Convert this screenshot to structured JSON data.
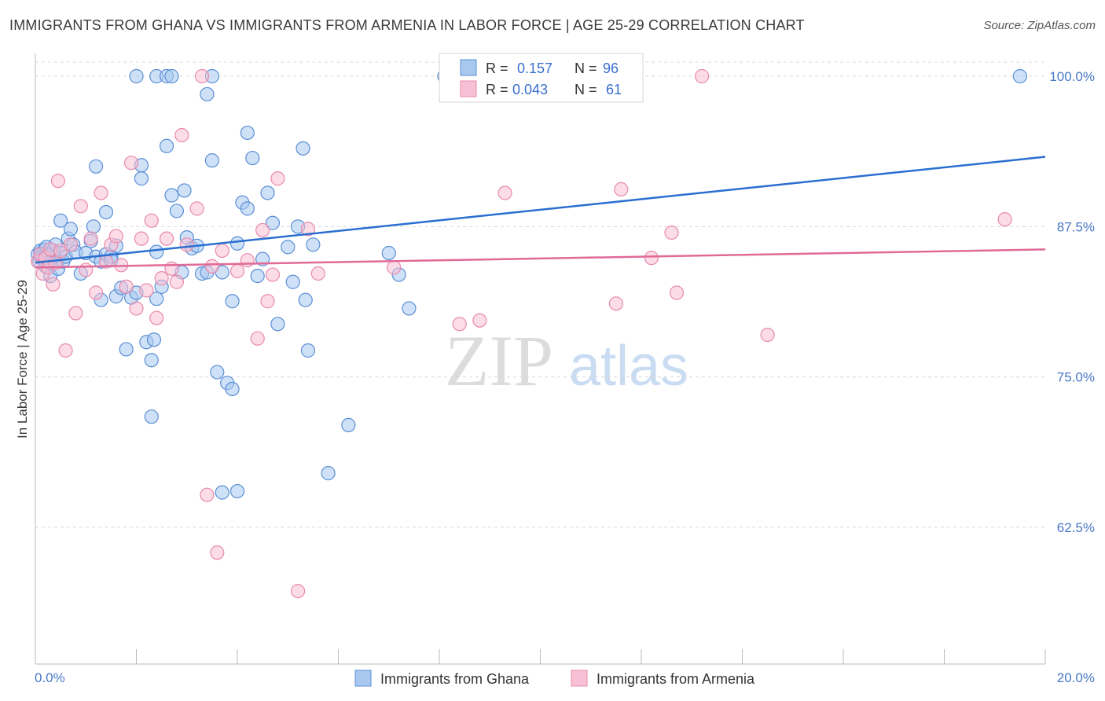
{
  "title": "IMMIGRANTS FROM GHANA VS IMMIGRANTS FROM ARMENIA IN LABOR FORCE | AGE 25-29 CORRELATION CHART",
  "source": "Source: ZipAtlas.com",
  "watermark": {
    "zip": "ZIP",
    "atlas": "atlas"
  },
  "legend_top": {
    "ghana": {
      "r_label": "R =",
      "r_value": "0.157",
      "n_label": "N =",
      "n_value": "96"
    },
    "armenia": {
      "r_label": "R =",
      "r_value": "0.043",
      "n_label": "N =",
      "n_value": "61"
    }
  },
  "colors": {
    "ghana_fill": "#a8c8f0",
    "ghana_stroke": "#5a8fd6",
    "ghana_line": "#2a6fd0",
    "armenia_fill": "#f8c0d4",
    "armenia_stroke": "#e88aac",
    "armenia_line": "#e06a98",
    "value_text": "#3a6fd0",
    "grid": "#d8d8d8"
  },
  "chart_data": {
    "type": "scatter",
    "title": "IMMIGRANTS FROM GHANA VS IMMIGRANTS FROM ARMENIA IN LABOR FORCE | AGE 25-29 CORRELATION CHART",
    "xlabel": "",
    "ylabel": "In Labor Force | Age 25-29",
    "xlim": [
      0,
      20
    ],
    "ylim": [
      51.5,
      101.5
    ],
    "x_tick_labels": [
      "0.0%",
      "20.0%"
    ],
    "y_ticks": [
      62.5,
      75.0,
      87.5,
      100.0
    ],
    "y_tick_labels": [
      "62.5%",
      "75.0%",
      "87.5%",
      "100.0%"
    ],
    "grid": true,
    "legend": "top-center and bottom",
    "series": [
      {
        "name": "Immigrants from Ghana",
        "R": 0.157,
        "N": 96,
        "trend": [
          [
            0,
            84.5
          ],
          [
            20,
            93.3
          ]
        ],
        "points": [
          [
            0.05,
            85.2
          ],
          [
            0.08,
            84.6
          ],
          [
            0.1,
            85.5
          ],
          [
            0.12,
            85.0
          ],
          [
            0.15,
            84.8
          ],
          [
            0.18,
            85.6
          ],
          [
            0.2,
            84.2
          ],
          [
            0.22,
            85.8
          ],
          [
            0.25,
            85.1
          ],
          [
            0.28,
            84.5
          ],
          [
            0.3,
            83.4
          ],
          [
            0.35,
            85.5
          ],
          [
            0.4,
            86.0
          ],
          [
            0.45,
            84.0
          ],
          [
            0.5,
            85.3
          ],
          [
            0.55,
            84.6
          ],
          [
            0.6,
            85.0
          ],
          [
            0.65,
            86.5
          ],
          [
            0.7,
            87.3
          ],
          [
            0.75,
            86.0
          ],
          [
            0.8,
            85.4
          ],
          [
            0.9,
            83.6
          ],
          [
            1.0,
            85.3
          ],
          [
            1.1,
            86.3
          ],
          [
            1.2,
            85.0
          ],
          [
            1.3,
            84.6
          ],
          [
            1.4,
            85.2
          ],
          [
            1.5,
            85.0
          ],
          [
            1.6,
            85.9
          ],
          [
            0.5,
            88.0
          ],
          [
            1.15,
            87.5
          ],
          [
            1.2,
            92.5
          ],
          [
            1.4,
            88.7
          ],
          [
            1.3,
            81.4
          ],
          [
            1.5,
            84.7
          ],
          [
            1.6,
            81.7
          ],
          [
            1.7,
            82.4
          ],
          [
            1.8,
            77.3
          ],
          [
            1.9,
            81.6
          ],
          [
            2.0,
            82.0
          ],
          [
            2.1,
            92.6
          ],
          [
            2.1,
            91.5
          ],
          [
            2.2,
            77.9
          ],
          [
            2.3,
            76.4
          ],
          [
            2.35,
            78.1
          ],
          [
            2.3,
            71.7
          ],
          [
            2.4,
            85.4
          ],
          [
            2.4,
            81.5
          ],
          [
            2.5,
            82.5
          ],
          [
            2.6,
            94.2
          ],
          [
            2.7,
            90.1
          ],
          [
            2.8,
            88.8
          ],
          [
            2.9,
            83.7
          ],
          [
            2.95,
            90.5
          ],
          [
            3.0,
            86.6
          ],
          [
            3.1,
            85.7
          ],
          [
            3.2,
            85.9
          ],
          [
            3.3,
            83.6
          ],
          [
            3.4,
            83.7
          ],
          [
            3.5,
            93.0
          ],
          [
            3.6,
            75.4
          ],
          [
            3.7,
            83.7
          ],
          [
            3.8,
            74.5
          ],
          [
            3.9,
            81.3
          ],
          [
            4.0,
            86.1
          ],
          [
            4.1,
            89.5
          ],
          [
            4.2,
            95.3
          ],
          [
            4.3,
            93.2
          ],
          [
            4.2,
            89.0
          ],
          [
            4.4,
            83.4
          ],
          [
            4.5,
            84.8
          ],
          [
            4.6,
            90.3
          ],
          [
            4.7,
            87.8
          ],
          [
            4.8,
            79.4
          ],
          [
            5.0,
            85.8
          ],
          [
            5.1,
            82.9
          ],
          [
            5.2,
            87.5
          ],
          [
            5.3,
            94.0
          ],
          [
            5.35,
            81.4
          ],
          [
            5.4,
            77.2
          ],
          [
            5.5,
            86.0
          ],
          [
            3.9,
            74.0
          ],
          [
            3.7,
            65.4
          ],
          [
            4.0,
            65.5
          ],
          [
            5.8,
            67.0
          ],
          [
            6.2,
            71.0
          ],
          [
            7.0,
            85.3
          ],
          [
            7.2,
            83.5
          ],
          [
            7.4,
            80.7
          ],
          [
            2.0,
            100.0
          ],
          [
            2.4,
            100.0
          ],
          [
            2.6,
            100.0
          ],
          [
            2.7,
            100.0
          ],
          [
            3.4,
            98.5
          ],
          [
            3.5,
            100.0
          ],
          [
            8.1,
            100.0
          ],
          [
            19.5,
            100.0
          ]
        ]
      },
      {
        "name": "Immigrants from Armenia",
        "R": 0.043,
        "N": 61,
        "trend": [
          [
            0,
            84.1
          ],
          [
            20,
            85.6
          ]
        ],
        "points": [
          [
            0.05,
            84.6
          ],
          [
            0.1,
            85.2
          ],
          [
            0.15,
            83.6
          ],
          [
            0.2,
            84.9
          ],
          [
            0.25,
            84.1
          ],
          [
            0.3,
            85.6
          ],
          [
            0.35,
            82.7
          ],
          [
            0.4,
            84.5
          ],
          [
            0.45,
            91.3
          ],
          [
            0.5,
            85.5
          ],
          [
            0.6,
            77.2
          ],
          [
            0.7,
            86.0
          ],
          [
            0.8,
            80.3
          ],
          [
            0.9,
            89.2
          ],
          [
            1.0,
            83.9
          ],
          [
            1.1,
            86.5
          ],
          [
            1.2,
            82.0
          ],
          [
            1.3,
            90.3
          ],
          [
            1.4,
            84.6
          ],
          [
            1.5,
            86.0
          ],
          [
            1.6,
            86.7
          ],
          [
            1.7,
            84.3
          ],
          [
            1.8,
            82.5
          ],
          [
            1.9,
            92.8
          ],
          [
            2.0,
            80.7
          ],
          [
            2.1,
            86.5
          ],
          [
            2.2,
            82.2
          ],
          [
            2.3,
            88.0
          ],
          [
            2.4,
            79.9
          ],
          [
            2.5,
            83.2
          ],
          [
            2.6,
            86.5
          ],
          [
            2.7,
            84.0
          ],
          [
            2.8,
            82.9
          ],
          [
            2.9,
            95.1
          ],
          [
            3.0,
            86.0
          ],
          [
            3.2,
            89.0
          ],
          [
            3.4,
            65.2
          ],
          [
            3.5,
            84.2
          ],
          [
            3.6,
            60.4
          ],
          [
            3.7,
            85.5
          ],
          [
            4.0,
            83.8
          ],
          [
            4.2,
            84.7
          ],
          [
            4.4,
            78.2
          ],
          [
            4.5,
            87.2
          ],
          [
            4.6,
            81.3
          ],
          [
            4.7,
            83.5
          ],
          [
            4.8,
            91.5
          ],
          [
            5.2,
            57.2
          ],
          [
            5.4,
            87.3
          ],
          [
            5.6,
            83.6
          ],
          [
            7.1,
            84.1
          ],
          [
            8.4,
            79.4
          ],
          [
            8.8,
            79.7
          ],
          [
            9.3,
            90.3
          ],
          [
            11.5,
            81.1
          ],
          [
            11.6,
            90.6
          ],
          [
            12.2,
            84.9
          ],
          [
            12.6,
            87.0
          ],
          [
            12.7,
            82.0
          ],
          [
            14.5,
            78.5
          ],
          [
            19.2,
            88.1
          ],
          [
            3.3,
            100.0
          ],
          [
            13.2,
            100.0
          ]
        ]
      }
    ]
  },
  "legend_bottom": [
    {
      "label": "Immigrants from Ghana"
    },
    {
      "label": "Immigrants from Armenia"
    }
  ]
}
